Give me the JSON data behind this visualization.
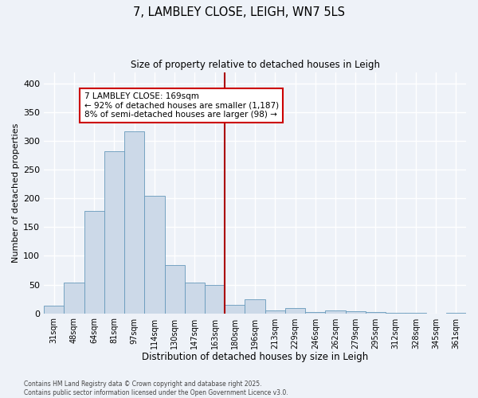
{
  "title_line1": "7, LAMBLEY CLOSE, LEIGH, WN7 5LS",
  "title_line2": "Size of property relative to detached houses in Leigh",
  "xlabel": "Distribution of detached houses by size in Leigh",
  "ylabel": "Number of detached properties",
  "bar_color": "#ccd9e8",
  "bar_edge_color": "#6699bb",
  "background_color": "#eef2f8",
  "grid_color": "#ffffff",
  "categories": [
    "31sqm",
    "48sqm",
    "64sqm",
    "81sqm",
    "97sqm",
    "114sqm",
    "130sqm",
    "147sqm",
    "163sqm",
    "180sqm",
    "196sqm",
    "213sqm",
    "229sqm",
    "246sqm",
    "262sqm",
    "279sqm",
    "295sqm",
    "312sqm",
    "328sqm",
    "345sqm",
    "361sqm"
  ],
  "values": [
    13,
    53,
    178,
    282,
    317,
    204,
    84,
    53,
    50,
    15,
    25,
    5,
    9,
    2,
    5,
    3,
    2,
    1,
    1,
    0,
    1
  ],
  "ylim": [
    0,
    420
  ],
  "yticks": [
    0,
    50,
    100,
    150,
    200,
    250,
    300,
    350,
    400
  ],
  "vline_index": 8.5,
  "vline_color": "#aa0000",
  "annotation_text": "7 LAMBLEY CLOSE: 169sqm\n← 92% of detached houses are smaller (1,187)\n8% of semi-detached houses are larger (98) →",
  "annotation_box_color": "#ffffff",
  "annotation_box_edge": "#cc0000",
  "footer_line1": "Contains HM Land Registry data © Crown copyright and database right 2025.",
  "footer_line2": "Contains public sector information licensed under the Open Government Licence v3.0."
}
